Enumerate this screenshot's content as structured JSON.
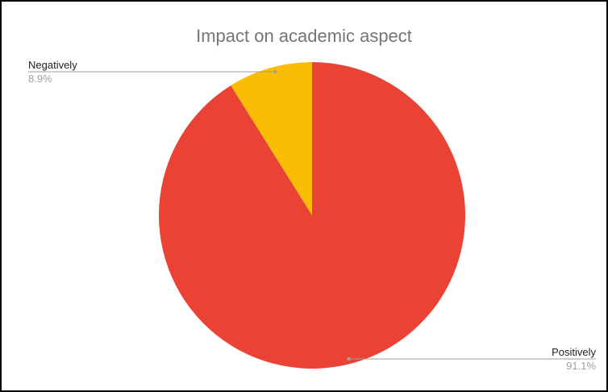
{
  "chart_data": {
    "type": "pie",
    "title": "Impact on academic aspect",
    "slices": [
      {
        "label": "Negatively",
        "value": 8.9,
        "display": "8.9%",
        "color": "#fbbc04"
      },
      {
        "label": "Positively",
        "value": 91.1,
        "display": "91.1%",
        "color": "#ea4335"
      }
    ],
    "legend": "none",
    "label_style": "callout"
  }
}
